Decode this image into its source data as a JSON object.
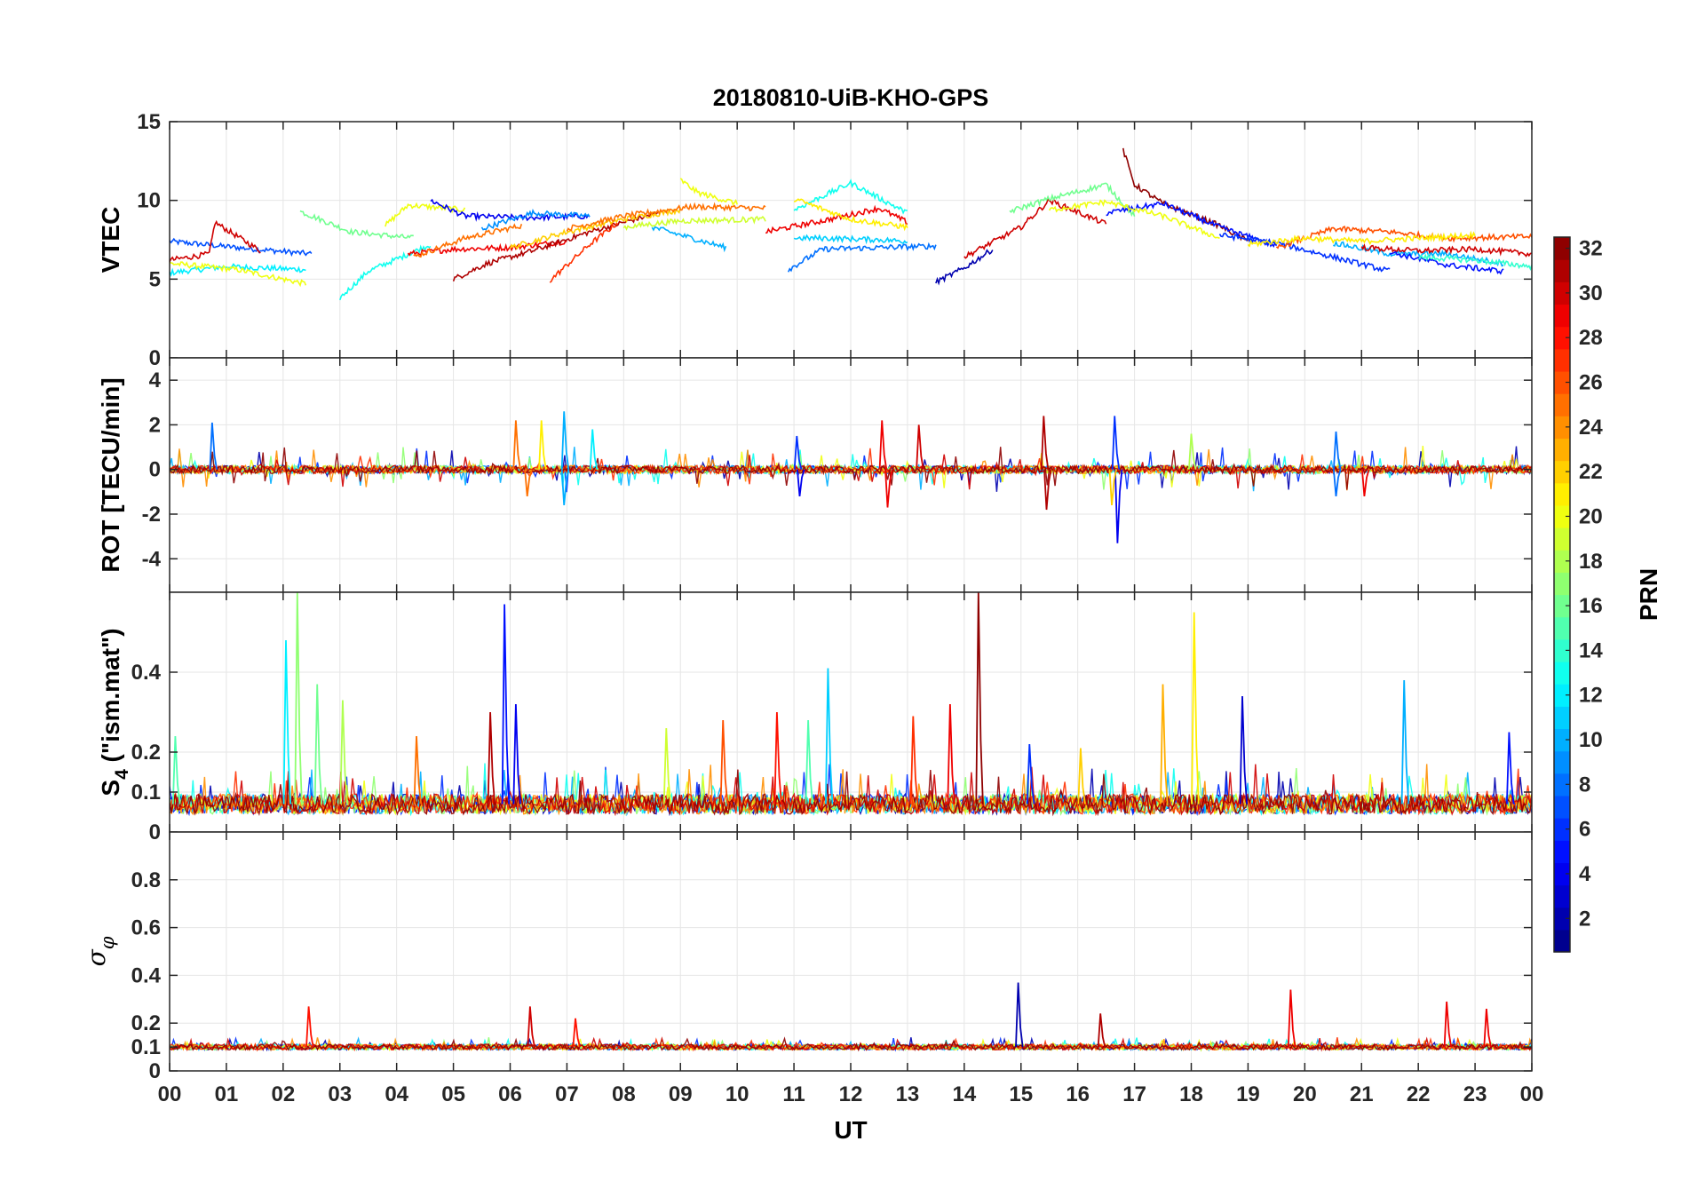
{
  "chart_data": {
    "type": "line",
    "title": "20180810-UiB-KHO-GPS",
    "xlabel": "UT",
    "x_range": [
      0,
      24
    ],
    "x_tick_labels": [
      "00",
      "01",
      "02",
      "03",
      "04",
      "05",
      "06",
      "07",
      "08",
      "09",
      "10",
      "11",
      "12",
      "13",
      "14",
      "15",
      "16",
      "17",
      "18",
      "19",
      "20",
      "21",
      "22",
      "23",
      "00"
    ],
    "panels": [
      {
        "id": "vtec",
        "ylabel": "VTEC",
        "ylim": [
          0,
          15
        ],
        "yticks": [
          0,
          5,
          10,
          15
        ],
        "ytick_labels": [
          "0",
          "5",
          "10",
          "15"
        ],
        "base_level": 7.5,
        "description": "vertical total electron content per satellite arc"
      },
      {
        "id": "rot",
        "ylabel": "ROT [TECU/min]",
        "ylim": [
          -5.5,
          5.0
        ],
        "yticks": [
          -4,
          -2,
          0,
          2,
          4
        ],
        "ytick_labels": [
          "-4",
          "-2",
          "0",
          "2",
          "4"
        ],
        "base_level": 0,
        "description": "rate of TEC change"
      },
      {
        "id": "s4",
        "ylabel_main": "S",
        "ylabel_sub": "4",
        "ylabel_suffix": " (\"ism.mat\")",
        "ylim": [
          0,
          0.6
        ],
        "yticks": [
          0,
          0.1,
          0.2,
          0.4
        ],
        "ytick_labels": [
          "0",
          "0.1",
          "0.2",
          "0.4"
        ],
        "base_level": 0.07,
        "description": "amplitude scintillation index"
      },
      {
        "id": "sigma",
        "ylabel_main": "σ",
        "ylabel_sub": "φ",
        "ylim": [
          0,
          1.0
        ],
        "yticks": [
          0,
          0.1,
          0.2,
          0.4,
          0.6,
          0.8
        ],
        "ytick_labels": [
          "0",
          "0.1",
          "0.2",
          "0.4",
          "0.6",
          "0.8"
        ],
        "base_level": 0.1,
        "description": "phase scintillation index"
      }
    ],
    "series_note": "one series per GPS PRN 1-32, colored by PRN",
    "prn_range": [
      1,
      32
    ],
    "vtec_arcs": [
      {
        "prn": 7,
        "t": [
          0.0,
          1.2,
          2.5
        ],
        "v": [
          7.4,
          7.0,
          6.6
        ]
      },
      {
        "prn": 12,
        "t": [
          0.0,
          1.0,
          2.4
        ],
        "v": [
          5.4,
          5.8,
          5.6
        ]
      },
      {
        "prn": 20,
        "t": [
          0.0,
          1.2,
          2.4
        ],
        "v": [
          6.0,
          5.6,
          4.7
        ]
      },
      {
        "prn": 30,
        "t": [
          0.0,
          0.7,
          0.8,
          1.6
        ],
        "v": [
          6.2,
          6.6,
          8.6,
          6.8
        ]
      },
      {
        "prn": 16,
        "t": [
          2.3,
          3.2,
          4.3
        ],
        "v": [
          9.3,
          8.0,
          7.6
        ]
      },
      {
        "prn": 13,
        "t": [
          3.0,
          3.5,
          4.6
        ],
        "v": [
          3.8,
          5.5,
          7.2
        ]
      },
      {
        "prn": 20,
        "t": [
          3.8,
          4.2,
          5.2
        ],
        "v": [
          8.4,
          9.7,
          9.4
        ]
      },
      {
        "prn": 4,
        "t": [
          4.6,
          5.2,
          6.3,
          7.4
        ],
        "v": [
          10.0,
          9.0,
          8.9,
          9.0
        ]
      },
      {
        "prn": 29,
        "t": [
          4.2,
          5.0,
          6.0,
          7.0
        ],
        "v": [
          6.6,
          6.9,
          7.0,
          7.4
        ]
      },
      {
        "prn": 25,
        "t": [
          4.3,
          5.2,
          6.2
        ],
        "v": [
          6.4,
          7.6,
          8.4
        ]
      },
      {
        "prn": 31,
        "t": [
          5.0,
          5.6,
          6.4,
          7.4,
          8.6
        ],
        "v": [
          5.0,
          6.0,
          6.8,
          8.0,
          9.2
        ]
      },
      {
        "prn": 9,
        "t": [
          5.5,
          6.4,
          7.4
        ],
        "v": [
          8.2,
          9.2,
          9.0
        ]
      },
      {
        "prn": 27,
        "t": [
          6.7,
          7.4,
          7.9
        ],
        "v": [
          4.9,
          7.2,
          8.6
        ]
      },
      {
        "prn": 22,
        "t": [
          6.0,
          7.0,
          8.0,
          9.0
        ],
        "v": [
          7.0,
          8.0,
          8.8,
          9.4
        ]
      },
      {
        "prn": 25,
        "t": [
          7.0,
          8.0,
          9.2,
          10.5
        ],
        "v": [
          8.2,
          9.0,
          9.6,
          9.5
        ]
      },
      {
        "prn": 20,
        "t": [
          9.0,
          9.3,
          10.0
        ],
        "v": [
          11.3,
          10.5,
          9.8
        ]
      },
      {
        "prn": 10,
        "t": [
          8.5,
          9.2,
          9.8
        ],
        "v": [
          8.3,
          7.6,
          7.0
        ]
      },
      {
        "prn": 19,
        "t": [
          8.0,
          9.0,
          10.5
        ],
        "v": [
          8.3,
          8.7,
          8.8
        ]
      },
      {
        "prn": 29,
        "t": [
          10.5,
          11.5,
          12.5,
          13.0
        ],
        "v": [
          8.0,
          8.7,
          9.5,
          8.6
        ]
      },
      {
        "prn": 11,
        "t": [
          11.0,
          11.5,
          12.5,
          13.0
        ],
        "v": [
          7.6,
          7.6,
          7.5,
          7.4
        ]
      },
      {
        "prn": 8,
        "t": [
          10.9,
          11.5,
          12.5,
          13.5
        ],
        "v": [
          5.6,
          6.9,
          7.0,
          7.1
        ]
      },
      {
        "prn": 13,
        "t": [
          11.0,
          12.0,
          13.0
        ],
        "v": [
          9.4,
          11.1,
          9.2
        ]
      },
      {
        "prn": 21,
        "t": [
          11.0,
          12.0,
          13.0
        ],
        "v": [
          10.1,
          8.8,
          8.3
        ]
      },
      {
        "prn": 2,
        "t": [
          13.5,
          14.0,
          14.5
        ],
        "v": [
          4.8,
          5.7,
          6.9
        ]
      },
      {
        "prn": 30,
        "t": [
          14.0,
          15.0,
          15.5,
          16.5
        ],
        "v": [
          6.4,
          8.3,
          10.0,
          8.5
        ]
      },
      {
        "prn": 16,
        "t": [
          14.8,
          15.5,
          16.5,
          17.0
        ],
        "v": [
          9.3,
          10.1,
          11.0,
          9.0
        ]
      },
      {
        "prn": 32,
        "t": [
          16.8,
          17.0,
          17.5,
          18.5,
          19.0
        ],
        "v": [
          13.2,
          11.0,
          9.8,
          8.4,
          7.4
        ]
      },
      {
        "prn": 5,
        "t": [
          16.5,
          17.5,
          18.5,
          19.5
        ],
        "v": [
          9.2,
          9.8,
          8.3,
          7.1
        ]
      },
      {
        "prn": 20,
        "t": [
          15.5,
          16.5,
          17.5,
          18.5
        ],
        "v": [
          9.4,
          9.9,
          9.0,
          7.6
        ]
      },
      {
        "prn": 6,
        "t": [
          18.5,
          19.5,
          20.5,
          21.5
        ],
        "v": [
          7.8,
          7.3,
          6.4,
          5.5
        ]
      },
      {
        "prn": 26,
        "t": [
          19.5,
          20.5,
          21.5,
          22.5,
          24.0
        ],
        "v": [
          7.0,
          8.2,
          8.0,
          7.6,
          7.7
        ]
      },
      {
        "prn": 21,
        "t": [
          19.0,
          20.0,
          21.0,
          22.0,
          23.0
        ],
        "v": [
          7.2,
          7.6,
          7.4,
          7.6,
          7.8
        ]
      },
      {
        "prn": 10,
        "t": [
          20.5,
          21.5,
          22.5,
          23.5
        ],
        "v": [
          7.3,
          6.6,
          6.6,
          6.0
        ]
      },
      {
        "prn": 5,
        "t": [
          21.5,
          22.5,
          23.5
        ],
        "v": [
          6.7,
          5.9,
          5.5
        ]
      },
      {
        "prn": 14,
        "t": [
          22.0,
          23.0,
          24.0
        ],
        "v": [
          6.4,
          6.2,
          5.8
        ]
      },
      {
        "prn": 30,
        "t": [
          21.0,
          22.0,
          23.0,
          24.0
        ],
        "v": [
          7.0,
          6.8,
          6.9,
          6.6
        ]
      }
    ],
    "rot_spikes": [
      {
        "prn": 8,
        "t": 0.75,
        "v": 2.1
      },
      {
        "prn": 25,
        "t": 6.1,
        "v": 2.2
      },
      {
        "prn": 21,
        "t": 6.55,
        "v": 2.2
      },
      {
        "prn": 10,
        "t": 6.95,
        "v": 2.6
      },
      {
        "prn": 12,
        "t": 7.45,
        "v": 1.8
      },
      {
        "prn": 10,
        "t": 6.95,
        "v": -1.6
      },
      {
        "prn": 25,
        "t": 6.3,
        "v": -1.2
      },
      {
        "prn": 6,
        "t": 11.05,
        "v": 1.5
      },
      {
        "prn": 4,
        "t": 11.1,
        "v": -1.2
      },
      {
        "prn": 29,
        "t": 12.55,
        "v": 2.2
      },
      {
        "prn": 30,
        "t": 13.2,
        "v": 2.0
      },
      {
        "prn": 29,
        "t": 12.65,
        "v": -1.7
      },
      {
        "prn": 31,
        "t": 15.4,
        "v": 2.4
      },
      {
        "prn": 31,
        "t": 15.45,
        "v": -1.8
      },
      {
        "prn": 6,
        "t": 16.65,
        "v": 2.4
      },
      {
        "prn": 4,
        "t": 16.7,
        "v": -3.3
      },
      {
        "prn": 22,
        "t": 16.6,
        "v": -1.6
      },
      {
        "prn": 18,
        "t": 18.0,
        "v": 1.6
      },
      {
        "prn": 8,
        "t": 20.55,
        "v": 1.7
      },
      {
        "prn": 8,
        "t": 20.55,
        "v": -1.2
      },
      {
        "prn": 29,
        "t": 21.05,
        "v": -1.2
      }
    ],
    "s4_peaks": [
      {
        "prn": 15,
        "t": 0.1,
        "v": 0.24
      },
      {
        "prn": 12,
        "t": 2.05,
        "v": 0.48
      },
      {
        "prn": 17,
        "t": 2.25,
        "v": 0.6
      },
      {
        "prn": 16,
        "t": 2.6,
        "v": 0.37
      },
      {
        "prn": 18,
        "t": 3.05,
        "v": 0.33
      },
      {
        "prn": 25,
        "t": 4.35,
        "v": 0.24
      },
      {
        "prn": 5,
        "t": 5.9,
        "v": 0.57
      },
      {
        "prn": 31,
        "t": 5.65,
        "v": 0.3
      },
      {
        "prn": 4,
        "t": 6.1,
        "v": 0.32
      },
      {
        "prn": 19,
        "t": 8.75,
        "v": 0.26
      },
      {
        "prn": 26,
        "t": 9.75,
        "v": 0.28
      },
      {
        "prn": 28,
        "t": 10.7,
        "v": 0.3
      },
      {
        "prn": 11,
        "t": 11.6,
        "v": 0.41
      },
      {
        "prn": 15,
        "t": 11.25,
        "v": 0.28
      },
      {
        "prn": 27,
        "t": 13.1,
        "v": 0.29
      },
      {
        "prn": 29,
        "t": 13.75,
        "v": 0.32
      },
      {
        "prn": 32,
        "t": 14.25,
        "v": 0.6
      },
      {
        "prn": 6,
        "t": 15.15,
        "v": 0.22
      },
      {
        "prn": 22,
        "t": 16.05,
        "v": 0.21
      },
      {
        "prn": 23,
        "t": 17.5,
        "v": 0.37
      },
      {
        "prn": 21,
        "t": 18.05,
        "v": 0.55
      },
      {
        "prn": 3,
        "t": 18.9,
        "v": 0.34
      },
      {
        "prn": 10,
        "t": 21.75,
        "v": 0.38
      },
      {
        "prn": 5,
        "t": 23.6,
        "v": 0.25
      }
    ],
    "sigma_peaks": [
      {
        "prn": 28,
        "t": 2.45,
        "v": 0.27
      },
      {
        "prn": 30,
        "t": 6.35,
        "v": 0.27
      },
      {
        "prn": 28,
        "t": 7.15,
        "v": 0.22
      },
      {
        "prn": 2,
        "t": 14.95,
        "v": 0.37
      },
      {
        "prn": 31,
        "t": 16.4,
        "v": 0.24
      },
      {
        "prn": 29,
        "t": 19.75,
        "v": 0.34
      },
      {
        "prn": 29,
        "t": 22.5,
        "v": 0.29
      },
      {
        "prn": 29,
        "t": 23.2,
        "v": 0.26
      }
    ],
    "colorbar": {
      "label": "PRN",
      "min": 1,
      "max": 32,
      "ticks": [
        2,
        4,
        6,
        8,
        10,
        12,
        14,
        16,
        18,
        20,
        22,
        24,
        26,
        28,
        30,
        32
      ],
      "tick_labels": [
        "2",
        "4",
        "6",
        "8",
        "10",
        "12",
        "14",
        "16",
        "18",
        "20",
        "22",
        "24",
        "26",
        "28",
        "30",
        "32"
      ],
      "colormap": "jet"
    }
  }
}
